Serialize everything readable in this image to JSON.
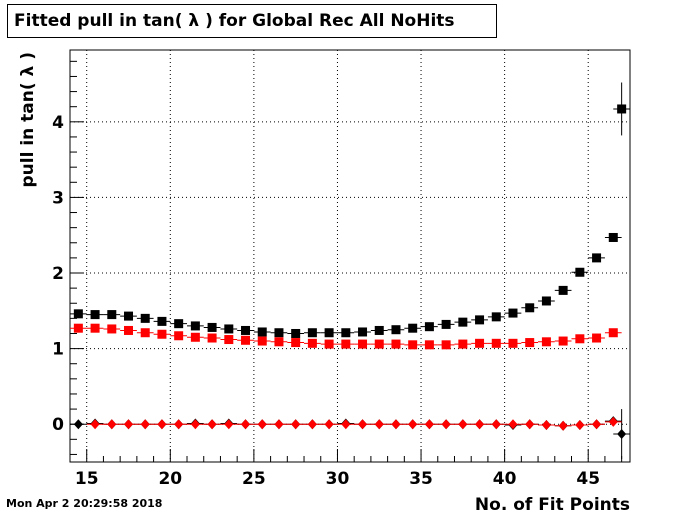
{
  "title": "Fitted pull in tan( λ ) for Global Rec All NoHits",
  "timestamp": "Mon Apr  2 20:29:58 2018",
  "chart_data": {
    "type": "scatter",
    "title": "Fitted pull in tan( λ ) for Global Rec All NoHits",
    "xlabel": "No. of Fit Points",
    "ylabel": "pull in tan( λ )",
    "xlim": [
      14,
      47.5
    ],
    "ylim": [
      -0.5,
      4.95
    ],
    "xticks": [
      15,
      20,
      25,
      30,
      35,
      40,
      45
    ],
    "yticks": [
      0,
      1,
      2,
      3,
      4
    ],
    "grid": true,
    "series": [
      {
        "marker": "square",
        "color": "#000000",
        "x": [
          14.5,
          15.5,
          16.5,
          17.5,
          18.5,
          19.5,
          20.5,
          21.5,
          22.5,
          23.5,
          24.5,
          25.5,
          26.5,
          27.5,
          28.5,
          29.5,
          30.5,
          31.5,
          32.5,
          33.5,
          34.5,
          35.5,
          36.5,
          37.5,
          38.5,
          39.5,
          40.5,
          41.5,
          42.5,
          43.5,
          44.5,
          45.5,
          46.5
        ],
        "y": [
          1.46,
          1.45,
          1.45,
          1.43,
          1.4,
          1.36,
          1.33,
          1.3,
          1.28,
          1.26,
          1.24,
          1.22,
          1.21,
          1.2,
          1.21,
          1.21,
          1.21,
          1.22,
          1.24,
          1.25,
          1.27,
          1.29,
          1.32,
          1.35,
          1.38,
          1.42,
          1.47,
          1.54,
          1.63,
          1.77,
          2.01,
          2.2,
          2.47
        ],
        "err": [
          0.02,
          0.02,
          0.02,
          0.02,
          0.02,
          0.02,
          0.02,
          0.02,
          0.02,
          0.02,
          0.02,
          0.02,
          0.02,
          0.02,
          0.02,
          0.02,
          0.02,
          0.02,
          0.02,
          0.02,
          0.02,
          0.02,
          0.02,
          0.02,
          0.02,
          0.02,
          0.02,
          0.02,
          0.03,
          0.03,
          0.04,
          0.05,
          0.05
        ]
      },
      {
        "marker": "square",
        "color": "#ff0000",
        "x": [
          14.5,
          15.5,
          16.5,
          17.5,
          18.5,
          19.5,
          20.5,
          21.5,
          22.5,
          23.5,
          24.5,
          25.5,
          26.5,
          27.5,
          28.5,
          29.5,
          30.5,
          31.5,
          32.5,
          33.5,
          34.5,
          35.5,
          36.5,
          37.5,
          38.5,
          39.5,
          40.5,
          41.5,
          42.5,
          43.5,
          44.5,
          45.5,
          46.5
        ],
        "y": [
          1.27,
          1.27,
          1.26,
          1.24,
          1.21,
          1.19,
          1.17,
          1.15,
          1.14,
          1.12,
          1.11,
          1.1,
          1.09,
          1.08,
          1.07,
          1.06,
          1.06,
          1.06,
          1.06,
          1.06,
          1.05,
          1.05,
          1.05,
          1.06,
          1.07,
          1.07,
          1.07,
          1.08,
          1.09,
          1.1,
          1.13,
          1.14,
          1.21
        ],
        "err": [
          0.02,
          0.02,
          0.02,
          0.02,
          0.02,
          0.02,
          0.02,
          0.02,
          0.02,
          0.02,
          0.02,
          0.02,
          0.02,
          0.02,
          0.02,
          0.02,
          0.02,
          0.02,
          0.02,
          0.02,
          0.02,
          0.02,
          0.02,
          0.02,
          0.02,
          0.02,
          0.02,
          0.02,
          0.02,
          0.02,
          0.02,
          0.02,
          0.02
        ]
      },
      {
        "marker": "diamond",
        "color": "#000000",
        "x": [
          14.5,
          15.5,
          16.5,
          17.5,
          18.5,
          19.5,
          20.5,
          21.5,
          22.5,
          23.5,
          24.5,
          25.5,
          26.5,
          27.5,
          28.5,
          29.5,
          30.5,
          31.5,
          32.5,
          33.5,
          34.5,
          35.5,
          36.5,
          37.5,
          38.5,
          39.5,
          40.5,
          41.5,
          42.5,
          43.5,
          44.5,
          45.5,
          46.5,
          47.0
        ],
        "y": [
          0.0,
          0.01,
          0.0,
          0.0,
          0.0,
          0.0,
          0.0,
          0.01,
          0.0,
          0.01,
          0.0,
          0.0,
          0.0,
          0.0,
          0.0,
          0.0,
          0.01,
          0.0,
          0.0,
          0.0,
          0.0,
          0.0,
          0.0,
          0.0,
          0.0,
          0.0,
          -0.01,
          0.0,
          -0.01,
          -0.02,
          -0.01,
          0.0,
          0.04,
          -0.13
        ],
        "err": [
          0.01,
          0.01,
          0.01,
          0.01,
          0.01,
          0.01,
          0.01,
          0.01,
          0.01,
          0.01,
          0.01,
          0.01,
          0.01,
          0.01,
          0.01,
          0.01,
          0.01,
          0.01,
          0.01,
          0.01,
          0.01,
          0.01,
          0.01,
          0.01,
          0.01,
          0.01,
          0.01,
          0.01,
          0.01,
          0.01,
          0.02,
          0.02,
          0.05,
          0.33
        ]
      },
      {
        "marker": "diamond",
        "color": "#ff0000",
        "x": [
          15.5,
          16.5,
          17.5,
          18.5,
          19.5,
          20.5,
          21.5,
          22.5,
          23.5,
          24.5,
          25.5,
          26.5,
          27.5,
          28.5,
          29.5,
          30.5,
          31.5,
          32.5,
          33.5,
          34.5,
          35.5,
          36.5,
          37.5,
          38.5,
          39.5,
          40.5,
          41.5,
          42.5,
          43.5,
          44.5,
          45.5,
          46.5
        ],
        "y": [
          0.0,
          0.0,
          0.0,
          0.0,
          0.0,
          0.0,
          0.0,
          0.0,
          0.0,
          0.0,
          0.0,
          0.0,
          0.0,
          0.0,
          0.0,
          0.0,
          0.0,
          0.0,
          0.0,
          0.0,
          0.0,
          0.0,
          0.0,
          0.0,
          0.0,
          0.0,
          0.0,
          -0.01,
          -0.02,
          -0.01,
          0.0,
          0.03
        ],
        "err": [
          0.01,
          0.01,
          0.01,
          0.01,
          0.01,
          0.01,
          0.01,
          0.01,
          0.01,
          0.01,
          0.01,
          0.01,
          0.01,
          0.01,
          0.01,
          0.01,
          0.01,
          0.01,
          0.01,
          0.01,
          0.01,
          0.01,
          0.01,
          0.01,
          0.01,
          0.01,
          0.01,
          0.01,
          0.01,
          0.01,
          0.02,
          0.02
        ]
      },
      {
        "marker": "square",
        "color": "#000000",
        "x": [
          47.0
        ],
        "y": [
          4.17
        ],
        "err": [
          0.35
        ]
      }
    ]
  }
}
